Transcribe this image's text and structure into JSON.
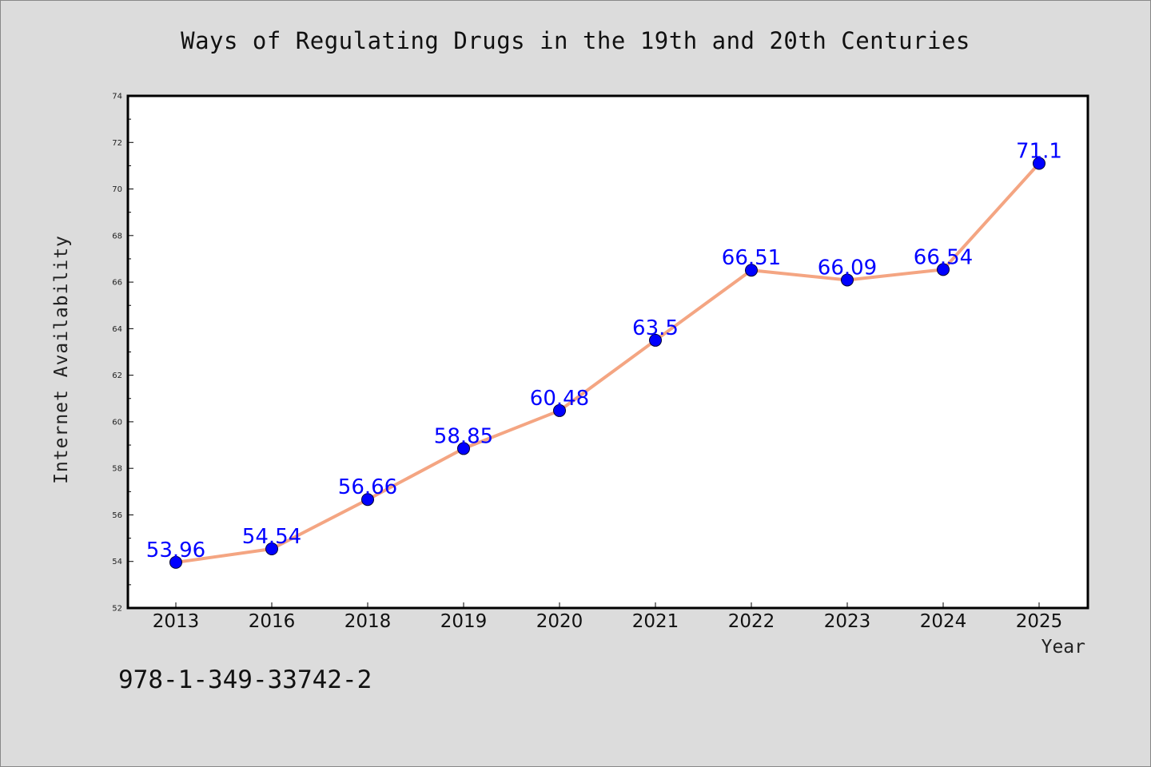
{
  "title": "Ways of Regulating Drugs in the 19th and 20th Centuries",
  "footer_text": "978-1-349-33742-2",
  "colors": {
    "background": "#dcdcdc",
    "plot_background": "#ffffff",
    "line": "#f4a582",
    "marker": "#0000ff",
    "data_label": "#0000ff"
  },
  "chart_data": {
    "type": "line",
    "title": "Ways of Regulating Drugs in the 19th and 20th Centuries",
    "xlabel": "Year",
    "ylabel": "Internet Availability",
    "categories": [
      "2013",
      "2016",
      "2018",
      "2019",
      "2020",
      "2021",
      "2022",
      "2023",
      "2024",
      "2025"
    ],
    "values": [
      53.96,
      54.54,
      56.66,
      58.85,
      60.48,
      63.5,
      66.51,
      66.09,
      66.54,
      71.1
    ],
    "data_labels": [
      "53.96",
      "54.54",
      "56.66",
      "58.85",
      "60.48",
      "63.5",
      "66.51",
      "66.09",
      "66.54",
      "71.1"
    ],
    "ylim": [
      52,
      74
    ],
    "yticks": [
      52,
      54,
      56,
      58,
      60,
      62,
      64,
      66,
      68,
      70,
      72,
      74
    ],
    "grid": false,
    "legend": "none",
    "marker": "circle"
  }
}
